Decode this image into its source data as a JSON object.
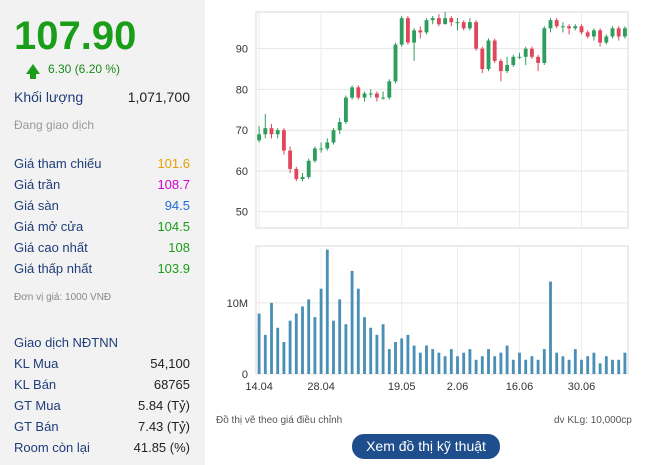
{
  "quote": {
    "price": "107.90",
    "change": "6.30 (6.20 %)",
    "volume_label": "Khối lượng",
    "volume_value": "1,071,700",
    "status": "Đang giao dịch",
    "stats": [
      {
        "label": "Giá tham chiếu",
        "value": "101.6",
        "color": "#e8a000"
      },
      {
        "label": "Giá trần",
        "value": "108.7",
        "color": "#d000d0"
      },
      {
        "label": "Giá sàn",
        "value": "94.5",
        "color": "#1f6fd0"
      },
      {
        "label": "Giá mở cửa",
        "value": "104.5",
        "color": "#1a9e1a"
      },
      {
        "label": "Giá cao nhất",
        "value": "108",
        "color": "#1a9e1a"
      },
      {
        "label": "Giá thấp nhất",
        "value": "103.9",
        "color": "#1a9e1a"
      }
    ],
    "unit_note": "Đơn vị giá: 1000 VNĐ"
  },
  "foreign": {
    "title": "Giao dịch NĐTNN",
    "rows": [
      {
        "label": "KL Mua",
        "value": "54,100"
      },
      {
        "label": "KL Bán",
        "value": "68765"
      },
      {
        "label": "GT Mua",
        "value": "5.84 (Tỷ)"
      },
      {
        "label": "GT Bán",
        "value": "7.43 (Tỷ)"
      },
      {
        "label": "Room còn lại",
        "value": "41.85 (%)"
      }
    ]
  },
  "footer": {
    "adjusted_note": "Đồ thị vẽ theo giá điều chỉnh",
    "volume_unit": "dv KLg: 10,000cp",
    "tech_button": "Xem đồ thị kỹ thuật"
  },
  "chart_data": {
    "type": "candlestick",
    "up_color": "#2e9e5e",
    "down_color": "#e0475a",
    "volume_color": "#4a8fb5",
    "x_ticks": [
      "14.04",
      "28.04",
      "19.05",
      "2.06",
      "16.06",
      "30.06"
    ],
    "x_tick_index": [
      0,
      10,
      23,
      32,
      42,
      52
    ],
    "price_ticks": [
      50,
      60,
      70,
      80,
      90
    ],
    "price_range": [
      46,
      99
    ],
    "volume_ticks": [
      {
        "label": "0",
        "value": 0
      },
      {
        "label": "10M",
        "value": 10
      }
    ],
    "volume_range": [
      0,
      18
    ],
    "candles": [
      [
        67.5,
        69.0,
        71.0,
        67.0
      ],
      [
        69.0,
        70.5,
        74.0,
        68.0
      ],
      [
        70.5,
        69.0,
        71.5,
        68.0
      ],
      [
        69.0,
        70.0,
        70.5,
        68.0
      ],
      [
        70.0,
        65.0,
        70.5,
        64.0
      ],
      [
        65.0,
        60.5,
        66.0,
        59.5
      ],
      [
        60.5,
        58.0,
        61.0,
        57.5
      ],
      [
        58.0,
        58.5,
        59.5,
        57.5
      ],
      [
        58.5,
        62.5,
        63.0,
        58.0
      ],
      [
        62.5,
        65.5,
        66.0,
        62.0
      ],
      [
        65.5,
        65.5,
        67.0,
        64.5
      ],
      [
        65.5,
        67.0,
        68.0,
        65.0
      ],
      [
        67.0,
        70.0,
        70.5,
        66.5
      ],
      [
        70.0,
        72.0,
        73.0,
        69.0
      ],
      [
        72.0,
        78.0,
        78.5,
        71.5
      ],
      [
        78.0,
        80.5,
        81.0,
        77.5
      ],
      [
        80.5,
        78.0,
        81.0,
        77.5
      ],
      [
        78.0,
        79.0,
        79.5,
        77.0
      ],
      [
        79.0,
        79.0,
        80.0,
        78.0
      ],
      [
        79.0,
        78.0,
        79.5,
        77.0
      ],
      [
        78.0,
        78.0,
        79.5,
        77.5
      ],
      [
        78.0,
        82.0,
        82.5,
        77.5
      ],
      [
        82.0,
        91.0,
        91.5,
        81.5
      ],
      [
        91.0,
        97.5,
        98.0,
        90.5
      ],
      [
        97.5,
        91.5,
        98.0,
        91.0
      ],
      [
        91.5,
        94.5,
        95.0,
        87.0
      ],
      [
        94.5,
        94.0,
        95.5,
        92.5
      ],
      [
        94.0,
        97.0,
        97.5,
        93.5
      ],
      [
        97.0,
        97.5,
        98.0,
        96.0
      ],
      [
        97.5,
        96.0,
        98.5,
        95.5
      ],
      [
        96.0,
        97.5,
        99.0,
        96.0
      ],
      [
        97.5,
        96.5,
        98.0,
        95.5
      ],
      [
        96.5,
        96.5,
        97.5,
        94.5
      ],
      [
        96.5,
        95.0,
        97.0,
        94.5
      ],
      [
        95.0,
        96.5,
        97.5,
        94.5
      ],
      [
        96.5,
        90.0,
        97.0,
        89.5
      ],
      [
        90.0,
        85.0,
        90.5,
        84.0
      ],
      [
        85.0,
        92.0,
        92.5,
        84.5
      ],
      [
        92.0,
        87.0,
        92.5,
        86.5
      ],
      [
        87.0,
        84.5,
        87.5,
        82.0
      ],
      [
        84.5,
        86.0,
        88.0,
        84.0
      ],
      [
        86.0,
        88.0,
        88.5,
        85.5
      ],
      [
        88.0,
        88.0,
        89.0,
        87.5
      ],
      [
        88.0,
        90.0,
        90.5,
        86.0
      ],
      [
        90.0,
        88.0,
        90.5,
        87.5
      ],
      [
        88.0,
        86.5,
        88.5,
        84.5
      ],
      [
        86.5,
        95.0,
        95.5,
        86.0
      ],
      [
        95.0,
        97.0,
        97.5,
        94.0
      ],
      [
        97.0,
        95.5,
        97.5,
        95.0
      ],
      [
        95.5,
        95.5,
        96.5,
        94.0
      ],
      [
        95.5,
        95.0,
        96.0,
        93.5
      ],
      [
        95.0,
        95.5,
        96.0,
        94.5
      ],
      [
        95.5,
        94.0,
        96.0,
        93.5
      ],
      [
        94.0,
        93.0,
        94.5,
        92.5
      ],
      [
        93.0,
        94.5,
        95.0,
        92.0
      ],
      [
        94.5,
        91.5,
        95.0,
        90.5
      ],
      [
        91.5,
        93.0,
        93.5,
        91.0
      ],
      [
        93.0,
        95.0,
        95.5,
        92.5
      ],
      [
        95.0,
        93.0,
        95.5,
        92.0
      ],
      [
        93.0,
        95.0,
        95.5,
        92.5
      ]
    ],
    "volumes": [
      8.5,
      5.5,
      10.0,
      6.5,
      4.5,
      7.5,
      8.5,
      9.5,
      10.5,
      8.0,
      12.0,
      17.5,
      7.5,
      10.5,
      7.0,
      14.5,
      12.0,
      8.0,
      6.5,
      5.5,
      7.0,
      3.5,
      4.5,
      5.0,
      5.5,
      4.0,
      3.0,
      4.0,
      3.5,
      3.0,
      2.5,
      3.5,
      2.5,
      3.0,
      3.5,
      2.0,
      2.5,
      3.5,
      2.5,
      3.0,
      4.0,
      2.0,
      3.0,
      2.0,
      2.5,
      2.0,
      3.5,
      13.0,
      3.0,
      2.5,
      2.0,
      3.5,
      2.0,
      2.5,
      3.0,
      1.5,
      2.5,
      2.0,
      2.0,
      3.0
    ]
  }
}
